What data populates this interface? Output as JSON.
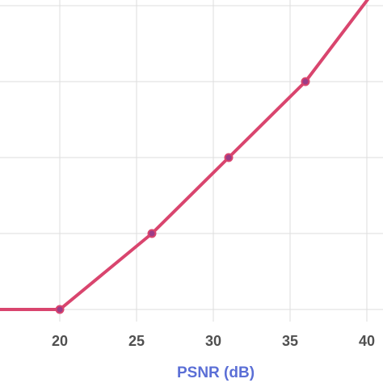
{
  "chart_data": {
    "type": "line",
    "title": "",
    "xlabel": "PSNR (dB)",
    "ylabel": "",
    "xlim": [
      16,
      40.5
    ],
    "ylim": [
      0,
      4.2
    ],
    "x_ticks": [
      20,
      25,
      30,
      35,
      40
    ],
    "x_tick_labels": [
      "20",
      "25",
      "30",
      "35",
      "40"
    ],
    "y_grid": [
      0,
      1,
      2,
      3,
      4
    ],
    "grid": true,
    "legend": "none",
    "series": [
      {
        "color": "#d9456e",
        "marker_color": "#9b3b86",
        "x": [
          16,
          20,
          26,
          31,
          36,
          40.5
        ],
        "y": [
          0,
          0,
          1,
          2,
          3,
          4.2
        ],
        "marked_points": [
          1,
          2,
          3,
          4
        ]
      }
    ]
  }
}
